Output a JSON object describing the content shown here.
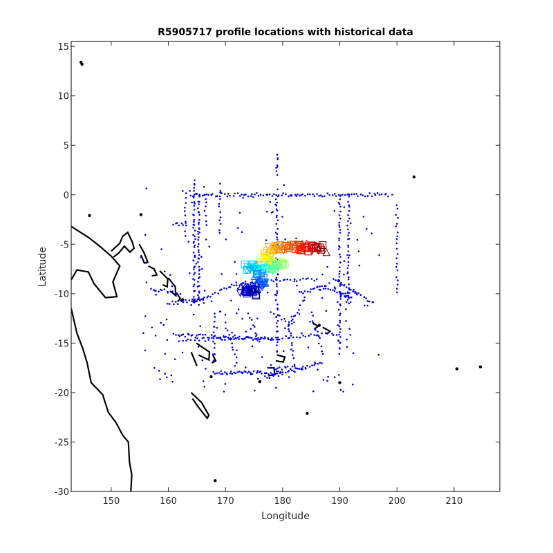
{
  "chart_data": {
    "type": "scatter",
    "title": "R5905717 profile locations with historical data",
    "xlabel": "Longitude",
    "ylabel": "Latitude",
    "xlim": [
      143,
      218
    ],
    "ylim": [
      -30,
      15.5
    ],
    "xticks": [
      150,
      160,
      170,
      180,
      190,
      200,
      210
    ],
    "yticks": [
      15,
      10,
      5,
      0,
      -5,
      -10,
      -15,
      -20,
      -25,
      -30
    ],
    "grid": false,
    "legend": "none",
    "colors": {
      "historical": "#0000ee",
      "coastline": "#000000",
      "profile_colormap": [
        "#00008f",
        "#0000ff",
        "#0080ff",
        "#00ffff",
        "#80ff80",
        "#ffff00",
        "#ff8000",
        "#ff0000",
        "#800000"
      ]
    },
    "series": [
      {
        "kind": "historical",
        "segments": [
          [
            [
              164,
              0
            ],
            [
              199,
              0
            ],
            0.7
          ],
          [
            [
              179,
              0
            ],
            [
              179,
              -16
            ],
            0.6
          ],
          [
            [
              179,
              2
            ],
            [
              179,
              4
            ],
            0.5
          ],
          [
            [
              190,
              0
            ],
            [
              190,
              -16
            ],
            0.6
          ],
          [
            [
              191.5,
              0
            ],
            [
              191.5,
              -11
            ],
            0.6
          ],
          [
            [
              164.5,
              1.5
            ],
            [
              164.5,
              -11
            ],
            0.5
          ],
          [
            [
              165.3,
              0
            ],
            [
              165.3,
              -11
            ],
            0.5
          ],
          [
            [
              163,
              0
            ],
            [
              163,
              -4
            ],
            0.8
          ],
          [
            [
              169,
              1
            ],
            [
              169,
              -4
            ],
            0.8
          ],
          [
            [
              166.5,
              0
            ],
            [
              166.5,
              -3
            ],
            0.8
          ],
          [
            [
              200,
              -1
            ],
            [
              200,
              -10
            ],
            0.8
          ],
          [
            [
              189,
              -8.5
            ],
            [
              196,
              -11
            ],
            0.7
          ],
          [
            [
              186,
              -9.5
            ],
            [
              193,
              -10
            ],
            0.7
          ],
          [
            [
              190,
              -10
            ],
            [
              192,
              -10.5
            ],
            0.4
          ],
          [
            [
              183,
              -10
            ],
            [
              188,
              -9
            ],
            0.6
          ],
          [
            [
              179,
              -14.5
            ],
            [
              190,
              -14
            ],
            0.9
          ],
          [
            [
              161,
              -14.2
            ],
            [
              178,
              -14.5
            ],
            0.6
          ],
          [
            [
              162,
              -14.7
            ],
            [
              179,
              -14.5
            ],
            0.9
          ],
          [
            [
              168,
              -18
            ],
            [
              180,
              -18
            ],
            0.5
          ],
          [
            [
              178,
              -17.5
            ],
            [
              184,
              -17.5
            ],
            0.7
          ],
          [
            [
              177,
              -18.5
            ],
            [
              187,
              -17
            ],
            0.7
          ],
          [
            [
              172,
              -9
            ],
            [
              186,
              -8.5
            ],
            0.9
          ],
          [
            [
              164,
              -11
            ],
            [
              172,
              -9
            ],
            0.7
          ],
          [
            [
              160,
              -11
            ],
            [
              166,
              -10.5
            ],
            0.6
          ],
          [
            [
              157,
              -9.5
            ],
            [
              162,
              -10
            ],
            0.7
          ],
          [
            [
              161,
              -3
            ],
            [
              163,
              -3
            ],
            0.6
          ],
          [
            [
              178,
              -12
            ],
            [
              182,
              -13
            ],
            0.8
          ],
          [
            [
              185,
              -12
            ],
            [
              187,
              -16
            ],
            0.7
          ],
          [
            [
              181,
              -13
            ],
            [
              182,
              -17
            ],
            0.7
          ],
          [
            [
              170,
              -13
            ],
            [
              172,
              -17
            ],
            0.8
          ],
          [
            [
              168,
              -12
            ],
            [
              168,
              -17
            ],
            0.8
          ],
          [
            [
              174,
              -12
            ],
            [
              176,
              -15
            ],
            0.8
          ],
          [
            [
              184,
              -10.2
            ],
            [
              181,
              -13.5
            ],
            0.8
          ]
        ],
        "scatter": {
          "count": 260,
          "x": [
            155,
            198
          ],
          "y": [
            -20,
            1
          ],
          "seed": 7
        }
      },
      {
        "kind": "profile",
        "name": "R5905717",
        "path": [
          [
            187,
            -5.5
          ],
          [
            184,
            -5.3
          ],
          [
            180,
            -5.3
          ],
          [
            178,
            -5.6
          ],
          [
            176.5,
            -6.4
          ],
          [
            177.5,
            -7.0
          ],
          [
            180,
            -7.2
          ],
          [
            177,
            -7.4
          ],
          [
            174,
            -7.2
          ],
          [
            175,
            -8.0
          ],
          [
            177,
            -8.8
          ],
          [
            175,
            -9.5
          ],
          [
            173,
            -9.6
          ],
          [
            175.5,
            -10
          ]
        ],
        "count": 170,
        "scatter_radius_deg": 0.9
      }
    ]
  }
}
